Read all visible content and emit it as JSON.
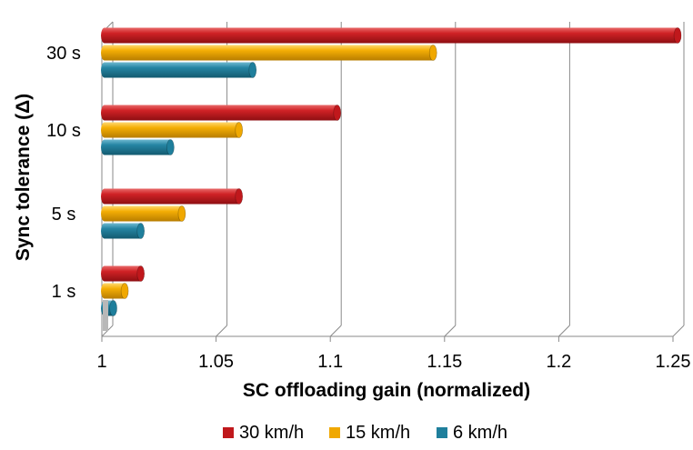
{
  "chart_data": {
    "type": "bar",
    "orientation": "horizontal",
    "style": "3d-cylinder",
    "title": "",
    "xlabel": "SC offloading gain (normalized)",
    "ylabel": "Sync tolerance (Δ)",
    "categories": [
      "1 s",
      "5 s",
      "10 s",
      "30 s"
    ],
    "series": [
      {
        "name": "30 km/h",
        "color": "#c0181c",
        "values": [
          1.017,
          1.06,
          1.103,
          1.252
        ]
      },
      {
        "name": "15 km/h",
        "color": "#f0a800",
        "values": [
          1.01,
          1.035,
          1.06,
          1.145
        ]
      },
      {
        "name": "6 km/h",
        "color": "#1f7f9c",
        "values": [
          1.005,
          1.017,
          1.03,
          1.066
        ]
      }
    ],
    "xlim": [
      1,
      1.25
    ],
    "xticks": [
      "1",
      "1.05",
      "1.1",
      "1.15",
      "1.2",
      "1.25"
    ],
    "grid": true,
    "legend_position": "bottom"
  }
}
